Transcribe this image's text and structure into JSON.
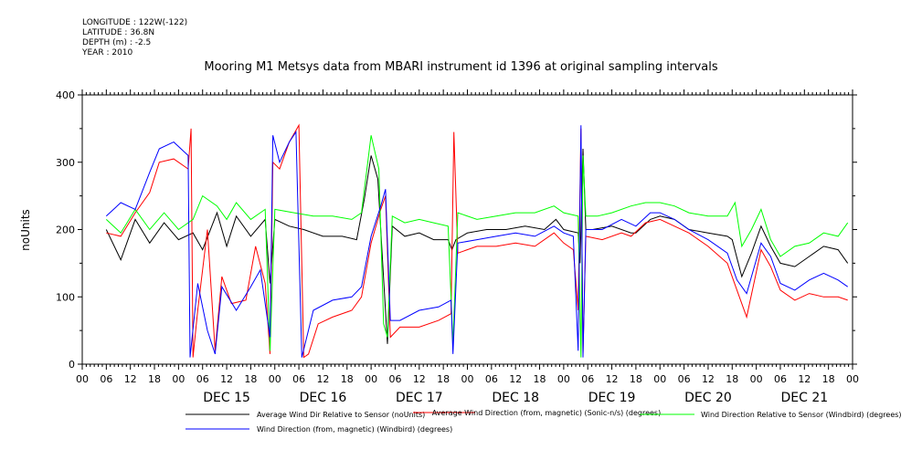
{
  "meta": {
    "longitude": "LONGITUDE : 122W(-122)",
    "latitude": "LATITUDE : 36.8N",
    "depth": "DEPTH (m) : -2.5",
    "year": "YEAR : 2010"
  },
  "chart_data": {
    "type": "line",
    "title": "Mooring M1 Metsys data from MBARI instrument id 1396 at original sampling intervals",
    "xlabel": "",
    "ylabel": "noUnits",
    "ylim": [
      0,
      400
    ],
    "yticks": [
      0,
      100,
      200,
      300,
      400
    ],
    "xlim": [
      -1.0,
      7.0
    ],
    "hour_tick_labels": [
      "00",
      "06",
      "12",
      "18"
    ],
    "day_labels": [
      "DEC 15",
      "DEC 16",
      "DEC 17",
      "DEC 18",
      "DEC 19",
      "DEC 20",
      "DEC 21"
    ],
    "grid": false,
    "legend_position": "bottom",
    "series": [
      {
        "name": "Average Wind Dir Relative to Sensor (noUnits)",
        "color": "#000000",
        "points": [
          [
            -0.75,
            200
          ],
          [
            -0.6,
            155
          ],
          [
            -0.45,
            215
          ],
          [
            -0.3,
            180
          ],
          [
            -0.15,
            210
          ],
          [
            0,
            185
          ],
          [
            0.15,
            195
          ],
          [
            0.25,
            170
          ],
          [
            0.4,
            225
          ],
          [
            0.5,
            175
          ],
          [
            0.6,
            220
          ],
          [
            0.75,
            190
          ],
          [
            0.9,
            215
          ],
          [
            0.95,
            120
          ],
          [
            1.0,
            215
          ],
          [
            1.15,
            205
          ],
          [
            1.3,
            200
          ],
          [
            1.5,
            190
          ],
          [
            1.7,
            190
          ],
          [
            1.85,
            185
          ],
          [
            1.93,
            245
          ],
          [
            2.0,
            310
          ],
          [
            2.07,
            275
          ],
          [
            2.12,
            150
          ],
          [
            2.17,
            30
          ],
          [
            2.22,
            205
          ],
          [
            2.35,
            190
          ],
          [
            2.5,
            195
          ],
          [
            2.65,
            185
          ],
          [
            2.8,
            185
          ],
          [
            2.84,
            170
          ],
          [
            2.88,
            185
          ],
          [
            3.0,
            195
          ],
          [
            3.2,
            200
          ],
          [
            3.4,
            200
          ],
          [
            3.6,
            205
          ],
          [
            3.8,
            200
          ],
          [
            3.92,
            215
          ],
          [
            4.0,
            200
          ],
          [
            4.15,
            195
          ],
          [
            4.17,
            150
          ],
          [
            4.2,
            320
          ],
          [
            4.23,
            200
          ],
          [
            4.3,
            200
          ],
          [
            4.5,
            205
          ],
          [
            4.7,
            195
          ],
          [
            4.75,
            195
          ],
          [
            4.9,
            215
          ],
          [
            5.0,
            220
          ],
          [
            5.15,
            215
          ],
          [
            5.3,
            200
          ],
          [
            5.5,
            195
          ],
          [
            5.7,
            190
          ],
          [
            5.75,
            185
          ],
          [
            5.85,
            130
          ],
          [
            5.95,
            165
          ],
          [
            6.05,
            205
          ],
          [
            6.15,
            175
          ],
          [
            6.25,
            150
          ],
          [
            6.4,
            145
          ],
          [
            6.55,
            160
          ],
          [
            6.7,
            175
          ],
          [
            6.85,
            170
          ],
          [
            6.95,
            150
          ]
        ]
      },
      {
        "name": "Average Wind Direction (from, magnetic) (Sonic-n/s) (degrees)",
        "color": "#ff0000",
        "points": [
          [
            -0.75,
            195
          ],
          [
            -0.6,
            190
          ],
          [
            -0.45,
            225
          ],
          [
            -0.3,
            255
          ],
          [
            -0.2,
            300
          ],
          [
            -0.05,
            305
          ],
          [
            0.1,
            290
          ],
          [
            0.13,
            350
          ],
          [
            0.15,
            10
          ],
          [
            0.2,
            80
          ],
          [
            0.3,
            200
          ],
          [
            0.38,
            20
          ],
          [
            0.45,
            130
          ],
          [
            0.55,
            90
          ],
          [
            0.7,
            95
          ],
          [
            0.8,
            175
          ],
          [
            0.9,
            120
          ],
          [
            0.95,
            15
          ],
          [
            0.98,
            300
          ],
          [
            1.05,
            290
          ],
          [
            1.15,
            330
          ],
          [
            1.25,
            355
          ],
          [
            1.3,
            10
          ],
          [
            1.35,
            15
          ],
          [
            1.45,
            60
          ],
          [
            1.6,
            70
          ],
          [
            1.8,
            80
          ],
          [
            1.9,
            100
          ],
          [
            2.0,
            180
          ],
          [
            2.1,
            230
          ],
          [
            2.15,
            250
          ],
          [
            2.2,
            40
          ],
          [
            2.3,
            55
          ],
          [
            2.5,
            55
          ],
          [
            2.7,
            65
          ],
          [
            2.83,
            75
          ],
          [
            2.86,
            345
          ],
          [
            2.9,
            165
          ],
          [
            3.1,
            175
          ],
          [
            3.3,
            175
          ],
          [
            3.5,
            180
          ],
          [
            3.7,
            175
          ],
          [
            3.9,
            195
          ],
          [
            4.0,
            180
          ],
          [
            4.1,
            170
          ],
          [
            4.15,
            80
          ],
          [
            4.18,
            350
          ],
          [
            4.2,
            15
          ],
          [
            4.23,
            190
          ],
          [
            4.4,
            185
          ],
          [
            4.6,
            195
          ],
          [
            4.7,
            190
          ],
          [
            4.85,
            210
          ],
          [
            5.0,
            215
          ],
          [
            5.15,
            205
          ],
          [
            5.3,
            195
          ],
          [
            5.5,
            175
          ],
          [
            5.7,
            150
          ],
          [
            5.8,
            110
          ],
          [
            5.9,
            70
          ],
          [
            6.05,
            170
          ],
          [
            6.15,
            145
          ],
          [
            6.25,
            110
          ],
          [
            6.4,
            95
          ],
          [
            6.55,
            105
          ],
          [
            6.7,
            100
          ],
          [
            6.85,
            100
          ],
          [
            6.95,
            95
          ]
        ]
      },
      {
        "name": "Wind Direction Relative to Sensor (Windbird) (degrees)",
        "color": "#00ff00",
        "points": [
          [
            -0.75,
            215
          ],
          [
            -0.6,
            195
          ],
          [
            -0.45,
            230
          ],
          [
            -0.3,
            200
          ],
          [
            -0.15,
            225
          ],
          [
            0,
            200
          ],
          [
            0.15,
            215
          ],
          [
            0.25,
            250
          ],
          [
            0.4,
            235
          ],
          [
            0.5,
            215
          ],
          [
            0.6,
            240
          ],
          [
            0.75,
            215
          ],
          [
            0.9,
            230
          ],
          [
            0.95,
            20
          ],
          [
            1.0,
            230
          ],
          [
            1.2,
            225
          ],
          [
            1.4,
            220
          ],
          [
            1.6,
            220
          ],
          [
            1.8,
            215
          ],
          [
            1.9,
            225
          ],
          [
            2.0,
            340
          ],
          [
            2.08,
            290
          ],
          [
            2.13,
            60
          ],
          [
            2.17,
            40
          ],
          [
            2.22,
            220
          ],
          [
            2.35,
            210
          ],
          [
            2.5,
            215
          ],
          [
            2.65,
            210
          ],
          [
            2.8,
            205
          ],
          [
            2.85,
            30
          ],
          [
            2.9,
            225
          ],
          [
            3.1,
            215
          ],
          [
            3.3,
            220
          ],
          [
            3.5,
            225
          ],
          [
            3.7,
            225
          ],
          [
            3.9,
            235
          ],
          [
            4.0,
            225
          ],
          [
            4.15,
            220
          ],
          [
            4.18,
            10
          ],
          [
            4.2,
            310
          ],
          [
            4.23,
            220
          ],
          [
            4.35,
            220
          ],
          [
            4.5,
            225
          ],
          [
            4.7,
            235
          ],
          [
            4.85,
            240
          ],
          [
            5.0,
            240
          ],
          [
            5.15,
            235
          ],
          [
            5.3,
            225
          ],
          [
            5.5,
            220
          ],
          [
            5.7,
            220
          ],
          [
            5.78,
            240
          ],
          [
            5.85,
            175
          ],
          [
            5.95,
            200
          ],
          [
            6.05,
            230
          ],
          [
            6.15,
            185
          ],
          [
            6.25,
            160
          ],
          [
            6.4,
            175
          ],
          [
            6.55,
            180
          ],
          [
            6.7,
            195
          ],
          [
            6.85,
            190
          ],
          [
            6.95,
            210
          ]
        ]
      },
      {
        "name": "Wind Direction (from, magnetic) (Windbird) (degrees)",
        "color": "#0000ff",
        "points": [
          [
            -0.75,
            220
          ],
          [
            -0.6,
            240
          ],
          [
            -0.45,
            230
          ],
          [
            -0.3,
            285
          ],
          [
            -0.2,
            320
          ],
          [
            -0.05,
            330
          ],
          [
            0.1,
            310
          ],
          [
            0.12,
            10
          ],
          [
            0.2,
            120
          ],
          [
            0.3,
            50
          ],
          [
            0.38,
            15
          ],
          [
            0.45,
            115
          ],
          [
            0.6,
            80
          ],
          [
            0.75,
            115
          ],
          [
            0.85,
            140
          ],
          [
            0.95,
            40
          ],
          [
            0.98,
            340
          ],
          [
            1.05,
            300
          ],
          [
            1.15,
            330
          ],
          [
            1.22,
            345
          ],
          [
            1.28,
            10
          ],
          [
            1.4,
            80
          ],
          [
            1.6,
            95
          ],
          [
            1.8,
            100
          ],
          [
            1.9,
            115
          ],
          [
            2.0,
            190
          ],
          [
            2.1,
            235
          ],
          [
            2.15,
            260
          ],
          [
            2.2,
            65
          ],
          [
            2.3,
            65
          ],
          [
            2.5,
            80
          ],
          [
            2.7,
            85
          ],
          [
            2.83,
            95
          ],
          [
            2.85,
            15
          ],
          [
            2.9,
            180
          ],
          [
            3.1,
            185
          ],
          [
            3.3,
            190
          ],
          [
            3.5,
            195
          ],
          [
            3.7,
            190
          ],
          [
            3.9,
            205
          ],
          [
            4.0,
            195
          ],
          [
            4.1,
            190
          ],
          [
            4.15,
            20
          ],
          [
            4.18,
            355
          ],
          [
            4.2,
            10
          ],
          [
            4.23,
            200
          ],
          [
            4.4,
            200
          ],
          [
            4.6,
            215
          ],
          [
            4.75,
            205
          ],
          [
            4.9,
            225
          ],
          [
            5.0,
            225
          ],
          [
            5.15,
            215
          ],
          [
            5.3,
            200
          ],
          [
            5.5,
            185
          ],
          [
            5.7,
            165
          ],
          [
            5.8,
            125
          ],
          [
            5.9,
            105
          ],
          [
            6.05,
            180
          ],
          [
            6.15,
            160
          ],
          [
            6.25,
            120
          ],
          [
            6.4,
            110
          ],
          [
            6.55,
            125
          ],
          [
            6.7,
            135
          ],
          [
            6.85,
            125
          ],
          [
            6.95,
            115
          ]
        ]
      }
    ]
  }
}
